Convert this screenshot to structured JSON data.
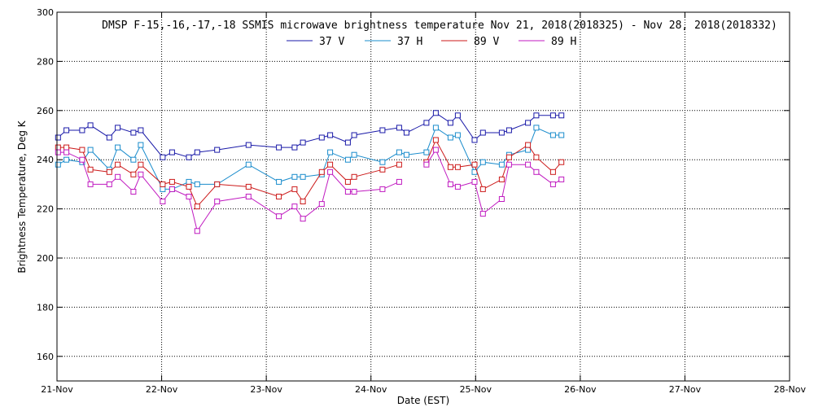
{
  "chart_data": {
    "type": "line",
    "title": "DMSP F-15,-16,-17,-18 SSMIS microwave brightness temperature Nov 21, 2018(2018325) - Nov 28, 2018(2018332)",
    "xlabel": "Date (EST)",
    "ylabel": "Brightness Temperature, Deg K",
    "xlim": [
      0,
      7
    ],
    "ylim": [
      150,
      300
    ],
    "x_ticks": [
      {
        "value": 0,
        "label": "21-Nov"
      },
      {
        "value": 1,
        "label": "22-Nov"
      },
      {
        "value": 2,
        "label": "23-Nov"
      },
      {
        "value": 3,
        "label": "24-Nov"
      },
      {
        "value": 4,
        "label": "25-Nov"
      },
      {
        "value": 5,
        "label": "26-Nov"
      },
      {
        "value": 6,
        "label": "27-Nov"
      },
      {
        "value": 7,
        "label": "28-Nov"
      }
    ],
    "y_ticks": [
      160,
      180,
      200,
      220,
      240,
      260,
      280,
      300
    ],
    "grid": true,
    "legend_position": "top-center",
    "series": [
      {
        "name": "37 V",
        "color": "#1a1aa8",
        "segments": [
          [
            [
              0.01,
              249
            ],
            [
              0.09,
              252
            ],
            [
              0.24,
              252
            ],
            [
              0.32,
              254
            ],
            [
              0.5,
              249
            ],
            [
              0.58,
              253
            ],
            [
              0.73,
              251
            ],
            [
              0.8,
              252
            ],
            [
              1.01,
              241
            ],
            [
              1.1,
              243
            ],
            [
              1.26,
              241
            ],
            [
              1.34,
              243
            ],
            [
              1.53,
              244
            ],
            [
              1.83,
              246
            ],
            [
              2.12,
              245
            ],
            [
              2.27,
              245
            ],
            [
              2.35,
              247
            ],
            [
              2.53,
              249
            ],
            [
              2.61,
              250
            ],
            [
              2.78,
              247
            ],
            [
              2.84,
              250
            ],
            [
              3.11,
              252
            ],
            [
              3.27,
              253
            ],
            [
              3.34,
              251
            ],
            [
              3.53,
              255
            ],
            [
              3.62,
              259
            ],
            [
              3.76,
              255
            ],
            [
              3.83,
              258
            ],
            [
              3.99,
              248
            ],
            [
              4.07,
              251
            ],
            [
              4.25,
              251
            ],
            [
              4.32,
              252
            ],
            [
              4.5,
              255
            ],
            [
              4.58,
              258
            ],
            [
              4.74,
              258
            ],
            [
              4.82,
              258
            ]
          ]
        ]
      },
      {
        "name": "37 H",
        "color": "#1a8ccc",
        "segments": [
          [
            [
              0.01,
              238
            ],
            [
              0.09,
              240
            ],
            [
              0.24,
              239
            ],
            [
              0.32,
              244
            ],
            [
              0.5,
              236
            ],
            [
              0.58,
              245
            ],
            [
              0.73,
              240
            ],
            [
              0.8,
              246
            ],
            [
              1.01,
              228
            ],
            [
              1.1,
              228
            ],
            [
              1.26,
              231
            ],
            [
              1.34,
              230
            ],
            [
              1.53,
              230
            ],
            [
              1.83,
              238
            ],
            [
              2.12,
              231
            ],
            [
              2.27,
              233
            ],
            [
              2.35,
              233
            ],
            [
              2.53,
              234
            ],
            [
              2.61,
              243
            ],
            [
              2.78,
              240
            ],
            [
              2.84,
              242
            ],
            [
              3.11,
              239
            ],
            [
              3.27,
              243
            ],
            [
              3.34,
              242
            ],
            [
              3.53,
              243
            ],
            [
              3.62,
              253
            ],
            [
              3.76,
              249
            ],
            [
              3.83,
              250
            ],
            [
              3.99,
              235
            ],
            [
              4.07,
              239
            ],
            [
              4.25,
              238
            ],
            [
              4.32,
              242
            ],
            [
              4.5,
              244
            ],
            [
              4.58,
              253
            ],
            [
              4.74,
              250
            ],
            [
              4.82,
              250
            ]
          ]
        ]
      },
      {
        "name": "89 V",
        "color": "#cc1a1a",
        "segments": [
          [
            [
              0.01,
              245
            ],
            [
              0.09,
              245
            ],
            [
              0.24,
              244
            ],
            [
              0.32,
              236
            ],
            [
              0.5,
              235
            ],
            [
              0.58,
              238
            ],
            [
              0.73,
              234
            ],
            [
              0.8,
              238
            ],
            [
              1.01,
              230
            ],
            [
              1.1,
              231
            ],
            [
              1.26,
              229
            ],
            [
              1.34,
              221
            ],
            [
              1.53,
              230
            ],
            [
              1.83,
              229
            ],
            [
              2.12,
              225
            ],
            [
              2.27,
              228
            ],
            [
              2.35,
              223
            ],
            [
              2.53,
              235
            ],
            [
              2.61,
              238
            ],
            [
              2.78,
              231
            ],
            [
              2.84,
              233
            ],
            [
              3.11,
              236
            ],
            [
              3.27,
              238
            ]
          ],
          [
            [
              3.53,
              239
            ],
            [
              3.62,
              248
            ],
            [
              3.76,
              237
            ],
            [
              3.83,
              237
            ],
            [
              3.99,
              238
            ],
            [
              4.07,
              228
            ],
            [
              4.25,
              232
            ],
            [
              4.32,
              241
            ],
            [
              4.5,
              246
            ],
            [
              4.58,
              241
            ],
            [
              4.74,
              235
            ],
            [
              4.82,
              239
            ]
          ]
        ]
      },
      {
        "name": "89 H",
        "color": "#c01ac0",
        "segments": [
          [
            [
              0.01,
              243
            ],
            [
              0.09,
              243
            ],
            [
              0.24,
              240
            ],
            [
              0.32,
              230
            ],
            [
              0.5,
              230
            ],
            [
              0.58,
              233
            ],
            [
              0.73,
              227
            ],
            [
              0.8,
              234
            ],
            [
              1.01,
              223
            ],
            [
              1.1,
              228
            ],
            [
              1.26,
              225
            ],
            [
              1.34,
              211
            ],
            [
              1.53,
              223
            ],
            [
              1.83,
              225
            ],
            [
              2.12,
              217
            ],
            [
              2.27,
              221
            ],
            [
              2.35,
              216
            ],
            [
              2.53,
              222
            ],
            [
              2.61,
              235
            ],
            [
              2.78,
              227
            ],
            [
              2.84,
              227
            ],
            [
              3.11,
              228
            ],
            [
              3.27,
              231
            ]
          ],
          [
            [
              3.53,
              238
            ],
            [
              3.62,
              244
            ],
            [
              3.76,
              230
            ],
            [
              3.83,
              229
            ],
            [
              3.99,
              231
            ],
            [
              4.07,
              218
            ],
            [
              4.25,
              224
            ],
            [
              4.32,
              238
            ],
            [
              4.5,
              238
            ],
            [
              4.58,
              235
            ],
            [
              4.74,
              230
            ],
            [
              4.82,
              232
            ]
          ]
        ]
      }
    ]
  }
}
